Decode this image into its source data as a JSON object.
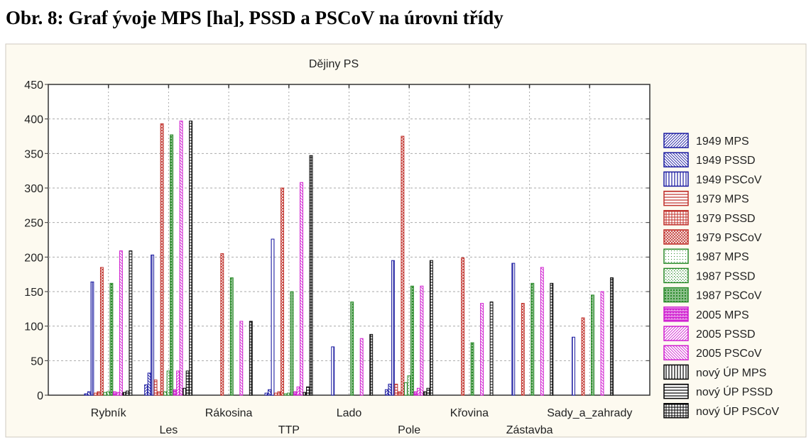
{
  "caption": "Obr. 8: Graf ývoje MPS [ha], PSSD a PSCoV na úrovni třídy",
  "chart_data": {
    "type": "bar",
    "title": "Dějiny PS",
    "xlabel": "",
    "ylabel": "",
    "ylim": [
      0,
      450
    ],
    "yticks": [
      0,
      50,
      100,
      150,
      200,
      250,
      300,
      350,
      400,
      450
    ],
    "grid": true,
    "legend_position": "right",
    "categories": [
      "Rybník",
      "Les",
      "Rákosina",
      "TTP",
      "Lado",
      "Pole",
      "Křovina",
      "Zástavba",
      "Sady_a_zahrady"
    ],
    "series": [
      {
        "name": "1949 MPS",
        "color": "#1a1aa0",
        "pattern": "diag-up",
        "values": [
          2,
          15,
          0,
          3,
          0,
          8,
          0,
          0,
          0
        ]
      },
      {
        "name": "1949 PSSD",
        "color": "#1a1aa0",
        "pattern": "diag-down",
        "values": [
          5,
          32,
          0,
          8,
          0,
          16,
          0,
          0,
          0
        ]
      },
      {
        "name": "1949 PSCoV",
        "color": "#1a1aa0",
        "pattern": "vertical",
        "values": [
          164,
          203,
          0,
          226,
          70,
          195,
          0,
          191,
          84
        ]
      },
      {
        "name": "1979 MPS",
        "color": "#c0302a",
        "pattern": "horizontal",
        "values": [
          3,
          22,
          0,
          3,
          0,
          16,
          0,
          0,
          0
        ]
      },
      {
        "name": "1979 PSSD",
        "color": "#c0302a",
        "pattern": "grid",
        "values": [
          5,
          5,
          0,
          5,
          0,
          5,
          0,
          0,
          0
        ]
      },
      {
        "name": "1979 PSCoV",
        "color": "#c0302a",
        "pattern": "cross",
        "values": [
          185,
          393,
          205,
          300,
          0,
          375,
          199,
          133,
          112
        ]
      },
      {
        "name": "1987 MPS",
        "color": "#2a8a2a",
        "pattern": "dots-sparse",
        "values": [
          4,
          5,
          0,
          2,
          0,
          18,
          0,
          0,
          0
        ]
      },
      {
        "name": "1987 PSSD",
        "color": "#2a8a2a",
        "pattern": "dots",
        "values": [
          5,
          35,
          0,
          3,
          0,
          28,
          0,
          0,
          0
        ]
      },
      {
        "name": "1987 PSCoV",
        "color": "#2a8a2a",
        "pattern": "dense",
        "values": [
          162,
          377,
          170,
          150,
          135,
          158,
          76,
          162,
          145
        ]
      },
      {
        "name": "2005 MPS",
        "color": "#d020d0",
        "pattern": "brick",
        "values": [
          5,
          8,
          0,
          5,
          0,
          5,
          0,
          0,
          0
        ]
      },
      {
        "name": "2005 PSSD",
        "color": "#d020d0",
        "pattern": "diag-up",
        "values": [
          4,
          35,
          0,
          12,
          0,
          10,
          0,
          0,
          0
        ]
      },
      {
        "name": "2005 PSCoV",
        "color": "#d020d0",
        "pattern": "diag-down",
        "values": [
          209,
          397,
          107,
          308,
          82,
          158,
          133,
          185,
          150
        ]
      },
      {
        "name": "nový ÚP MPS",
        "color": "#000000",
        "pattern": "vertical",
        "values": [
          4,
          10,
          0,
          4,
          0,
          5,
          0,
          0,
          0
        ]
      },
      {
        "name": "nový ÚP PSSD",
        "color": "#000000",
        "pattern": "horizontal",
        "values": [
          6,
          35,
          0,
          12,
          0,
          10,
          0,
          0,
          0
        ]
      },
      {
        "name": "nový ÚP PSCoV",
        "color": "#000000",
        "pattern": "grid",
        "values": [
          209,
          397,
          107,
          347,
          88,
          195,
          135,
          162,
          170
        ]
      }
    ]
  }
}
